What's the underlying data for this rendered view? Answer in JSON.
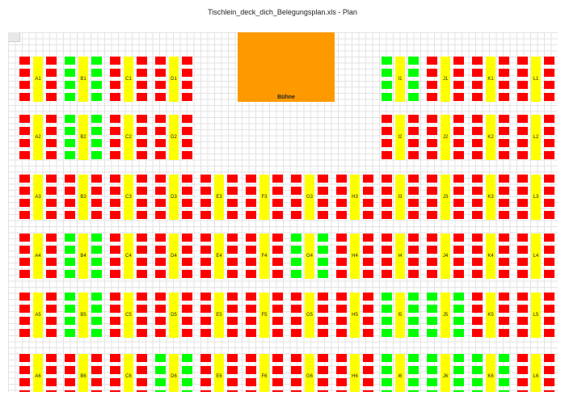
{
  "document": {
    "title": "Tischlein_deck_dich_Belegungsplan.xls - Plan"
  },
  "stage": {
    "label": "Bühne"
  },
  "tables": [
    {
      "id": "A1",
      "free": []
    },
    {
      "id": "B1",
      "free": [
        0,
        1,
        2,
        3,
        4,
        5,
        6,
        7
      ]
    },
    {
      "id": "C1",
      "free": []
    },
    {
      "id": "D1",
      "free": []
    },
    {
      "id": "I1",
      "free": [
        0,
        1,
        2,
        3,
        4,
        5,
        6,
        7
      ]
    },
    {
      "id": "J1",
      "free": []
    },
    {
      "id": "K1",
      "free": []
    },
    {
      "id": "L1",
      "free": []
    },
    {
      "id": "A2",
      "free": []
    },
    {
      "id": "B2",
      "free": [
        0,
        1,
        2,
        3,
        4,
        5,
        6,
        7
      ]
    },
    {
      "id": "C2",
      "free": []
    },
    {
      "id": "D2",
      "free": []
    },
    {
      "id": "I2",
      "free": []
    },
    {
      "id": "J2",
      "free": []
    },
    {
      "id": "K2",
      "free": []
    },
    {
      "id": "L2",
      "free": []
    },
    {
      "id": "A3",
      "free": []
    },
    {
      "id": "B3",
      "free": []
    },
    {
      "id": "C3",
      "free": []
    },
    {
      "id": "D3",
      "free": []
    },
    {
      "id": "E3",
      "free": []
    },
    {
      "id": "F3",
      "free": []
    },
    {
      "id": "G3",
      "free": []
    },
    {
      "id": "H3",
      "free": []
    },
    {
      "id": "I3",
      "free": []
    },
    {
      "id": "J3",
      "free": []
    },
    {
      "id": "K3",
      "free": []
    },
    {
      "id": "L3",
      "free": []
    },
    {
      "id": "A4",
      "free": []
    },
    {
      "id": "B4",
      "free": [
        0,
        1,
        2,
        3,
        4,
        5,
        6,
        7
      ]
    },
    {
      "id": "C4",
      "free": []
    },
    {
      "id": "D4",
      "free": []
    },
    {
      "id": "E4",
      "free": []
    },
    {
      "id": "F4",
      "free": []
    },
    {
      "id": "G4",
      "free": [
        0,
        1,
        2,
        3,
        4,
        5,
        6,
        7
      ]
    },
    {
      "id": "H4",
      "free": []
    },
    {
      "id": "I4",
      "free": []
    },
    {
      "id": "J4",
      "free": []
    },
    {
      "id": "K4",
      "free": []
    },
    {
      "id": "L4",
      "free": []
    },
    {
      "id": "A5",
      "free": []
    },
    {
      "id": "B5",
      "free": [
        0,
        1,
        2,
        3,
        4,
        5,
        6,
        7
      ]
    },
    {
      "id": "C5",
      "free": []
    },
    {
      "id": "D5",
      "free": []
    },
    {
      "id": "E5",
      "free": []
    },
    {
      "id": "F5",
      "free": []
    },
    {
      "id": "G5",
      "free": []
    },
    {
      "id": "H5",
      "free": []
    },
    {
      "id": "I5",
      "free": [
        0,
        1,
        2,
        3,
        4,
        5,
        6,
        7
      ]
    },
    {
      "id": "J5",
      "free": [
        0,
        1,
        2,
        3,
        4,
        5,
        6,
        7
      ]
    },
    {
      "id": "K5",
      "free": []
    },
    {
      "id": "L5",
      "free": []
    },
    {
      "id": "A6",
      "free": []
    },
    {
      "id": "B6",
      "free": []
    },
    {
      "id": "C6",
      "free": []
    },
    {
      "id": "D6",
      "free": [
        0,
        1,
        2,
        3,
        4,
        5,
        6,
        7
      ]
    },
    {
      "id": "E6",
      "free": []
    },
    {
      "id": "F6",
      "free": []
    },
    {
      "id": "G6",
      "free": []
    },
    {
      "id": "H6",
      "free": []
    },
    {
      "id": "I6",
      "free": [
        0,
        1,
        2,
        3,
        4,
        5,
        6,
        7
      ]
    },
    {
      "id": "J6",
      "free": [
        0,
        1,
        2,
        3,
        4,
        5,
        6,
        7
      ]
    },
    {
      "id": "K6",
      "free": [
        0,
        1,
        2,
        3,
        4,
        5,
        6,
        7
      ]
    },
    {
      "id": "L6",
      "free": []
    }
  ],
  "colors": {
    "occupied_seat": "#ff0000",
    "free_seat": "#00ff00",
    "table": "#ffff00",
    "stage": "#ff9900"
  }
}
